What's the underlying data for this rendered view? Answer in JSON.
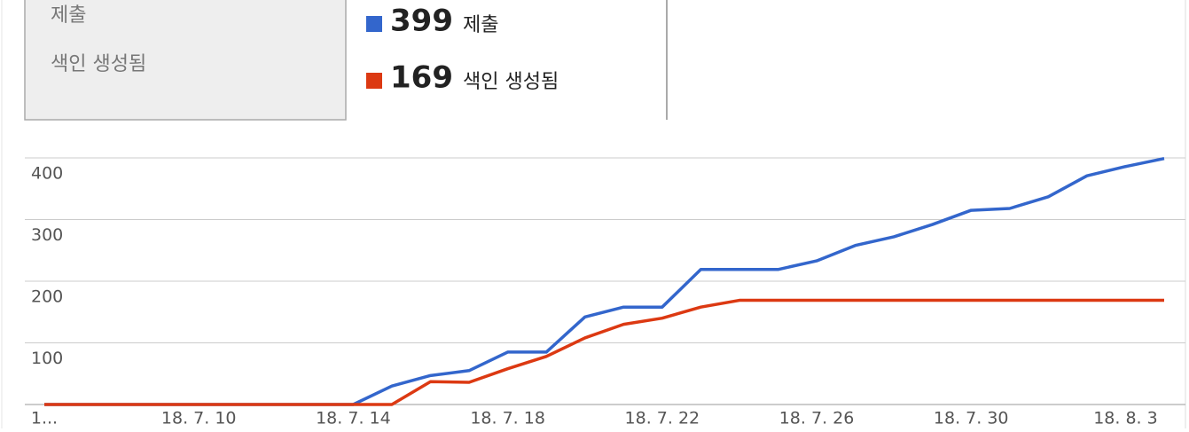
{
  "sidebar": [
    "제출",
    "색인 생성됨"
  ],
  "chart_data": {
    "type": "line",
    "categories": [
      "1...",
      null,
      null,
      null,
      "18. 7. 10",
      null,
      null,
      null,
      "18. 7. 14",
      null,
      null,
      null,
      "18. 7. 18",
      null,
      null,
      null,
      "18. 7. 22",
      null,
      null,
      null,
      "18. 7. 26",
      null,
      null,
      null,
      "18. 7. 30",
      null,
      null,
      null,
      "18. 8. 3",
      null
    ],
    "series": [
      {
        "name": "제출",
        "color": "#3366cc",
        "values": [
          0,
          0,
          0,
          0,
          0,
          0,
          0,
          0,
          0,
          30,
          47,
          55,
          85,
          85,
          142,
          158,
          158,
          219,
          219,
          219,
          233,
          258,
          272,
          292,
          315,
          318,
          337,
          371,
          386,
          399
        ]
      },
      {
        "name": "색인 생성됨",
        "color": "#dc3912",
        "values": [
          0,
          0,
          0,
          0,
          0,
          0,
          0,
          0,
          0,
          0,
          37,
          36,
          58,
          78,
          108,
          130,
          140,
          158,
          169,
          169,
          169,
          169,
          169,
          169,
          169,
          169,
          169,
          169,
          169,
          169
        ]
      }
    ],
    "ylim": [
      0,
      400
    ],
    "yticks": [
      100,
      200,
      300,
      400
    ],
    "grid": true
  }
}
